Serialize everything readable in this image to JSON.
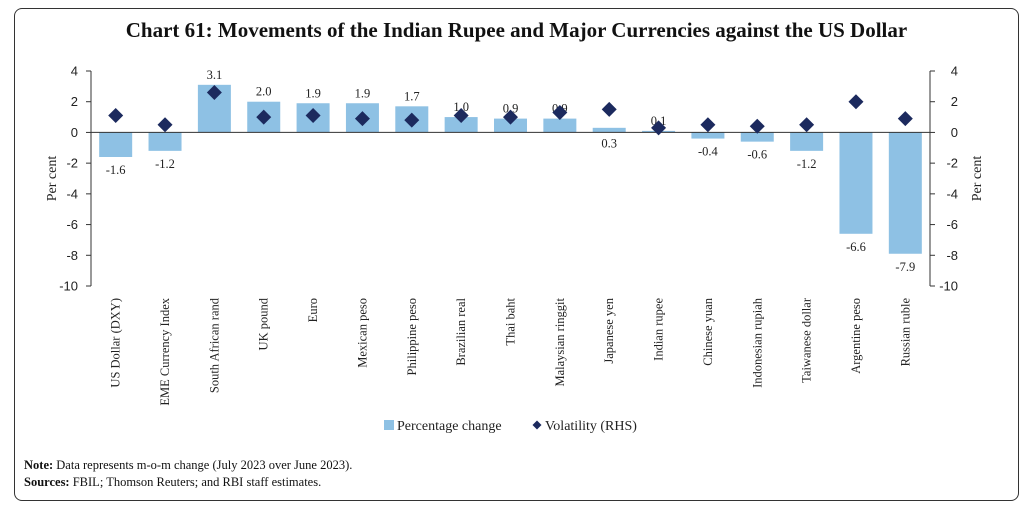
{
  "title": "Chart 61: Movements of the Indian Rupee and Major Currencies against the US Dollar",
  "note_label": "Note:",
  "note_text": "Data represents m-o-m change (July 2023 over June 2023).",
  "sources_label": "Sources:",
  "sources_text": "FBIL; Thomson Reuters; and RBI staff estimates.",
  "colors": {
    "bar": "#8ec1e4",
    "marker": "#1c2a5e"
  },
  "chart_data": {
    "type": "bar",
    "ylabel": "Per cent",
    "y2label": "Per cent",
    "ylim": [
      -10,
      4
    ],
    "y2lim": [
      -10,
      4
    ],
    "yticks": [
      4,
      2,
      0,
      -2,
      -4,
      -6,
      -8,
      -10
    ],
    "y2ticks": [
      4,
      2,
      0,
      -2,
      -4,
      -6,
      -8,
      -10
    ],
    "categories": [
      "US Dollar (DXY)",
      "EME Currency Index",
      "South African rand",
      "UK pound",
      "Euro",
      "Mexican peso",
      "Philippine peso",
      "Brazilian real",
      "Thai baht",
      "Malaysian ringgit",
      "Japanese yen",
      "Indian rupee",
      "Chinese yuan",
      "Indonesian rupiah",
      "Taiwanese dollar",
      "Argentine peso",
      "Russian ruble"
    ],
    "series": [
      {
        "name": "Percentage change",
        "type": "bar",
        "values": [
          -1.6,
          -1.2,
          3.1,
          2.0,
          1.9,
          1.9,
          1.7,
          1.0,
          0.9,
          0.9,
          0.3,
          0.1,
          -0.4,
          -0.6,
          -1.2,
          -6.6,
          -7.9
        ],
        "labels": [
          "-1.6",
          "-1.2",
          "3.1",
          "2.0",
          "1.9",
          "1.9",
          "1.7",
          "1.0",
          "0.9",
          "0.9",
          "0.3",
          "0.1",
          "-0.4",
          "-0.6",
          "-1.2",
          "-6.6",
          "-7.9"
        ]
      },
      {
        "name": "Volatility (RHS)",
        "type": "scatter",
        "axis": "right",
        "values": [
          1.1,
          0.5,
          2.6,
          1.0,
          1.1,
          0.9,
          0.8,
          1.1,
          1.0,
          1.3,
          1.5,
          0.3,
          0.5,
          0.4,
          0.5,
          2.0,
          0.9
        ]
      }
    ],
    "legend": "bottom-center",
    "grid": false
  }
}
